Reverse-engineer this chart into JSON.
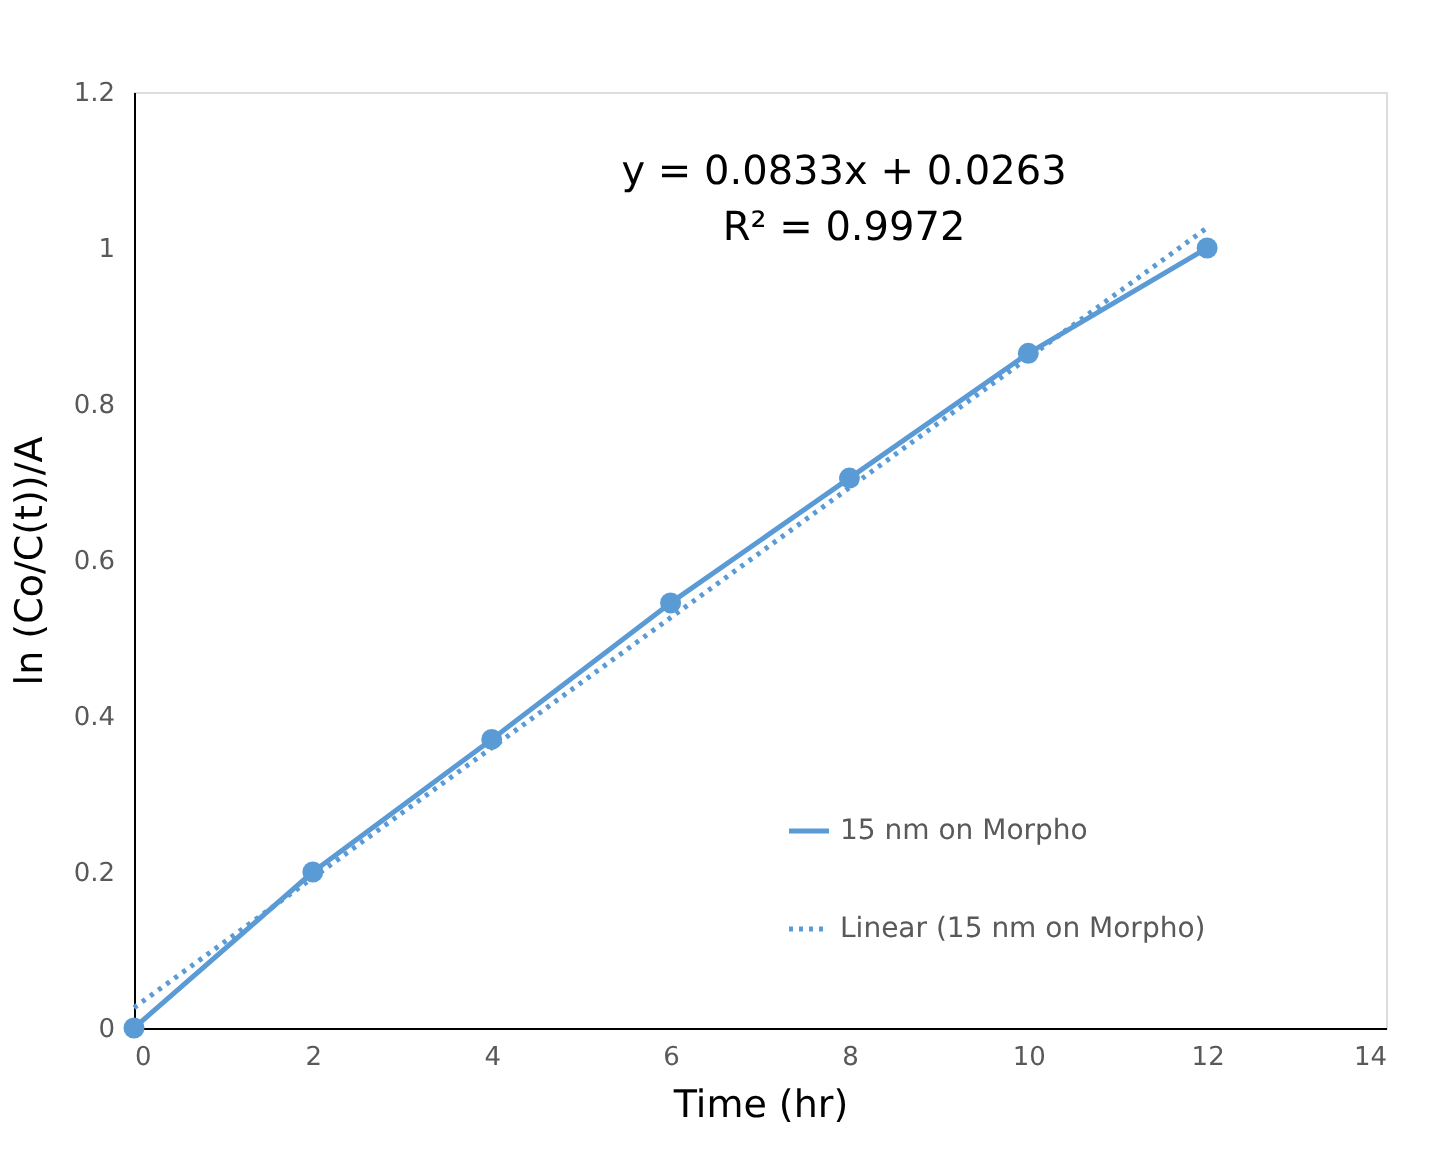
{
  "chart_data": {
    "type": "line",
    "xlabel": "Time (hr)",
    "ylabel": "ln (Co/C(t))/A",
    "x": [
      0,
      2,
      4,
      6,
      8,
      10,
      12
    ],
    "series": [
      {
        "name": "15 nm on Morpho",
        "color": "#5b9bd5",
        "values": [
          0,
          0.2,
          0.37,
          0.545,
          0.705,
          0.865,
          1.0
        ],
        "marker": "circle",
        "line_style": "solid"
      },
      {
        "name": "Linear (15 nm on Morpho)",
        "color": "#5b9bd5",
        "type": "line",
        "x": [
          0,
          12
        ],
        "values": [
          0.026,
          1.026
        ],
        "marker": "none",
        "line_style": "dotted"
      }
    ],
    "xlim": [
      0,
      14
    ],
    "xticks": [
      0,
      2,
      4,
      6,
      8,
      10,
      12,
      14
    ],
    "ylim": [
      0,
      1.2
    ],
    "yticks": [
      0,
      0.2,
      0.4,
      0.6,
      0.8,
      1,
      1.2
    ],
    "annotations": [
      "y = 0.0833x + 0.0263",
      "R² = 0.9972"
    ],
    "grid": false,
    "legend": "bottom right"
  }
}
